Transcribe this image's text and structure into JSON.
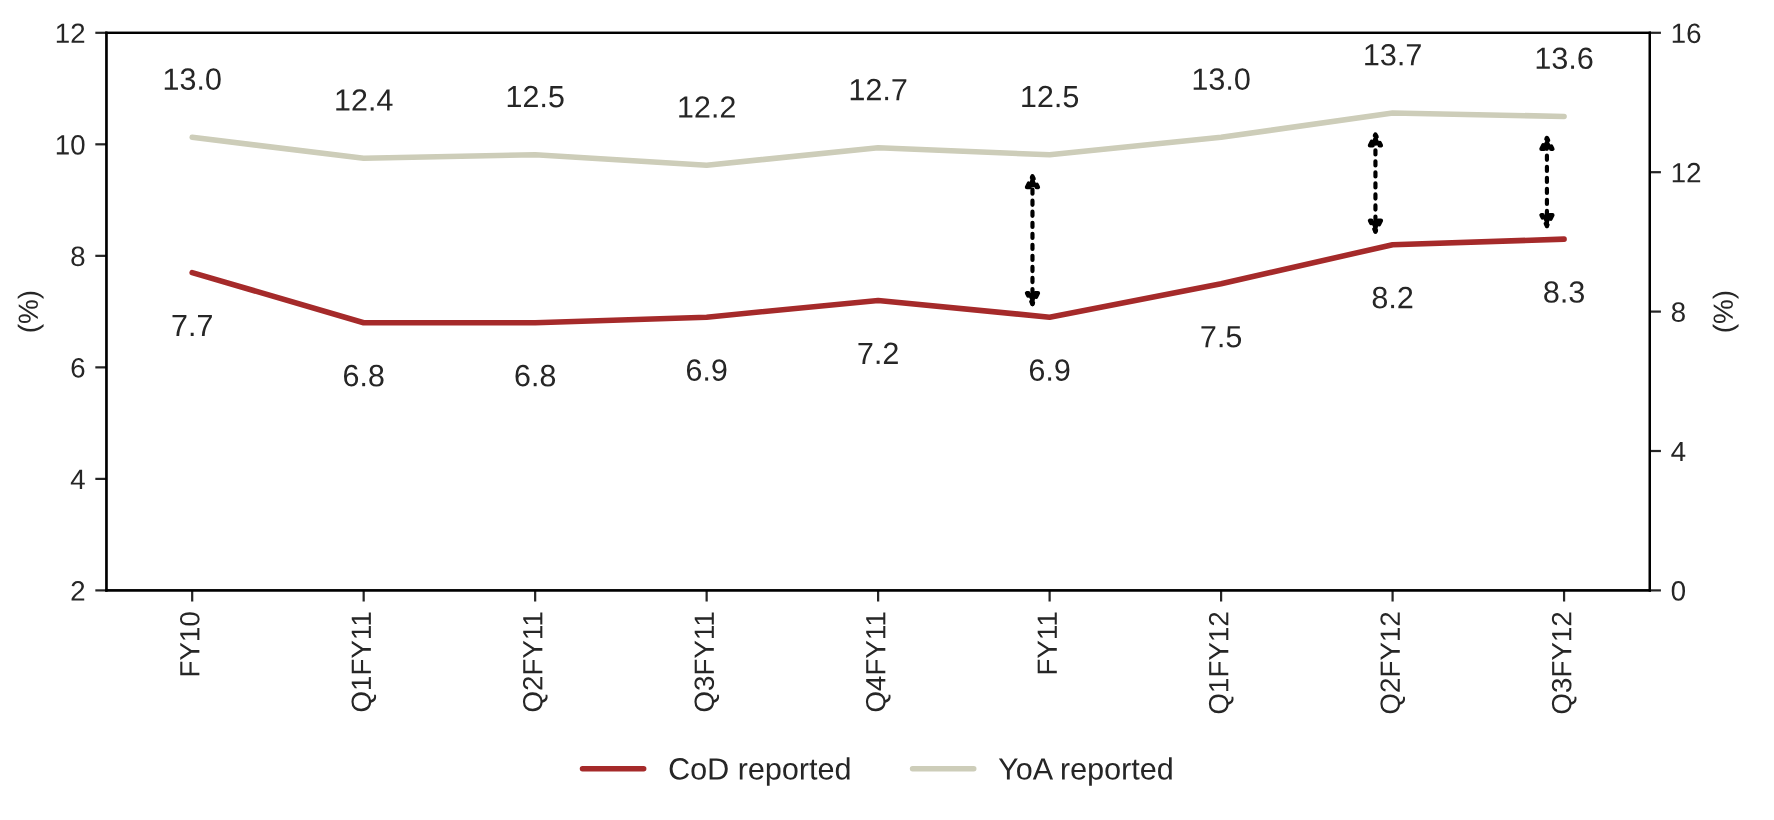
{
  "chart_data": {
    "type": "line",
    "ylabel": "(%)",
    "y2label": "(%)",
    "categories": [
      "FY10",
      "Q1FY11",
      "Q2FY11",
      "Q3FY11",
      "Q4FY11",
      "FY11",
      "Q1FY12",
      "Q2FY12",
      "Q3FY12"
    ],
    "series": [
      {
        "name": "CoD reported",
        "color": "#a52a2a",
        "values": [
          7.7,
          6.8,
          6.8,
          6.9,
          7.2,
          6.9,
          7.5,
          8.2,
          8.3
        ],
        "value_labels": [
          "7.7",
          "6.8",
          "6.8",
          "6.9",
          "7.2",
          "6.9",
          "7.5",
          "8.2",
          "8.3"
        ]
      },
      {
        "name": "YoA reported",
        "color": "#cdcdb9",
        "axis": "y2",
        "values": [
          13.0,
          12.4,
          12.5,
          12.2,
          12.7,
          12.5,
          13.0,
          13.7,
          13.6
        ],
        "value_labels": [
          "13.0",
          "12.4",
          "12.5",
          "12.2",
          "12.7",
          "12.5",
          "13.0",
          "13.7",
          "13.6"
        ]
      }
    ],
    "ylim": [
      2,
      12
    ],
    "yticks": [
      2,
      4,
      6,
      8,
      10,
      12
    ],
    "y2lim": [
      0,
      16
    ],
    "y2ticks": [
      0,
      4,
      8,
      12,
      16
    ],
    "legend": "bottom",
    "grid": false,
    "marker": "none",
    "line_style": "solid"
  }
}
